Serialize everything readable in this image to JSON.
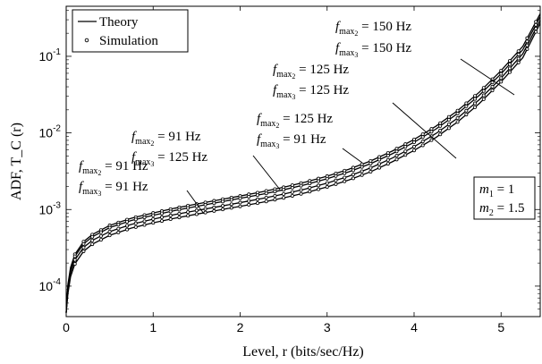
{
  "chart_data": {
    "type": "line",
    "xlabel": "Level, r (bits/sec/Hz)",
    "ylabel": "ADF, T_C (r)",
    "xlim": [
      0,
      5.45
    ],
    "ylim": [
      4e-05,
      0.45
    ],
    "yscale": "log",
    "grid": false,
    "x_ticks": [
      0,
      1,
      2,
      3,
      4,
      5
    ],
    "y_ticks": [
      0.0001,
      0.001,
      0.01,
      0.1
    ],
    "y_tick_labels": [
      {
        "base": "10",
        "exp": "-4"
      },
      {
        "base": "10",
        "exp": "-3"
      },
      {
        "base": "10",
        "exp": "-2"
      },
      {
        "base": "10",
        "exp": "-1"
      }
    ],
    "legend": {
      "placement": "top-left",
      "entries": [
        {
          "label": "Theory",
          "style": "line"
        },
        {
          "label": "Simulation",
          "style": "marker"
        }
      ]
    },
    "params_box": {
      "placement": "right",
      "lines": [
        {
          "sym": "m",
          "sub": "1",
          "value": "= 1"
        },
        {
          "sym": "m",
          "sub": "2",
          "value": "= 1.5"
        }
      ]
    },
    "x": [
      0.0,
      0.02,
      0.05,
      0.1,
      0.2,
      0.3,
      0.5,
      0.75,
      1.0,
      1.25,
      1.5,
      1.75,
      2.0,
      2.25,
      2.5,
      2.75,
      3.0,
      3.25,
      3.5,
      3.75,
      4.0,
      4.25,
      4.5,
      4.75,
      5.0,
      5.25,
      5.45
    ],
    "series": [
      {
        "values": [
          4.5e-05,
          0.000105,
          0.000175,
          0.00026,
          0.00038,
          0.00047,
          0.00062,
          0.00077,
          0.0009,
          0.00104,
          0.00118,
          0.00133,
          0.0015,
          0.0017,
          0.00195,
          0.00228,
          0.00272,
          0.00335,
          0.0043,
          0.0058,
          0.0082,
          0.0122,
          0.0195,
          0.034,
          0.065,
          0.135,
          0.36
        ]
      },
      {
        "values": [
          4.5e-05,
          0.0001,
          0.000165,
          0.000245,
          0.000355,
          0.00044,
          0.00058,
          0.00072,
          0.00084,
          0.00097,
          0.0011,
          0.00124,
          0.0014,
          0.00158,
          0.00181,
          0.00211,
          0.00252,
          0.0031,
          0.00397,
          0.00535,
          0.00755,
          0.0112,
          0.0179,
          0.031,
          0.059,
          0.122,
          0.33
        ]
      },
      {
        "values": [
          4.5e-05,
          9e-05,
          0.000148,
          0.00022,
          0.00032,
          0.000395,
          0.000515,
          0.00064,
          0.00075,
          0.00086,
          0.00097,
          0.00109,
          0.00123,
          0.00139,
          0.00159,
          0.00185,
          0.00221,
          0.00272,
          0.00349,
          0.0047,
          0.0066,
          0.0098,
          0.0156,
          0.0272,
          0.052,
          0.108,
          0.295
        ]
      },
      {
        "values": [
          4.5e-05,
          8e-05,
          0.000132,
          0.000195,
          0.000285,
          0.000352,
          0.00046,
          0.000572,
          0.00067,
          0.00077,
          0.00087,
          0.00098,
          0.0011,
          0.00124,
          0.00142,
          0.00165,
          0.00197,
          0.00243,
          0.00311,
          0.0042,
          0.0059,
          0.0087,
          0.0139,
          0.0242,
          0.0465,
          0.096,
          0.27
        ]
      }
    ],
    "annotations": [
      {
        "line1": {
          "sub": "2",
          "value": "= 150 Hz"
        },
        "line2": {
          "sub": "3",
          "value": "= 150 Hz"
        }
      },
      {
        "line1": {
          "sub": "2",
          "value": "= 125 Hz"
        },
        "line2": {
          "sub": "3",
          "value": "= 125 Hz"
        }
      },
      {
        "line1": {
          "sub": "2",
          "value": "= 125 Hz"
        },
        "line2": {
          "sub": "3",
          "value": "= 91 Hz"
        }
      },
      {
        "line1": {
          "sub": "2",
          "value": "= 91 Hz"
        },
        "line2": {
          "sub": "3",
          "value": "= 125 Hz"
        }
      },
      {
        "line1": {
          "sub": "2",
          "value": "= 91 Hz"
        },
        "line2": {
          "sub": "3",
          "value": "= 91 Hz"
        }
      }
    ]
  }
}
